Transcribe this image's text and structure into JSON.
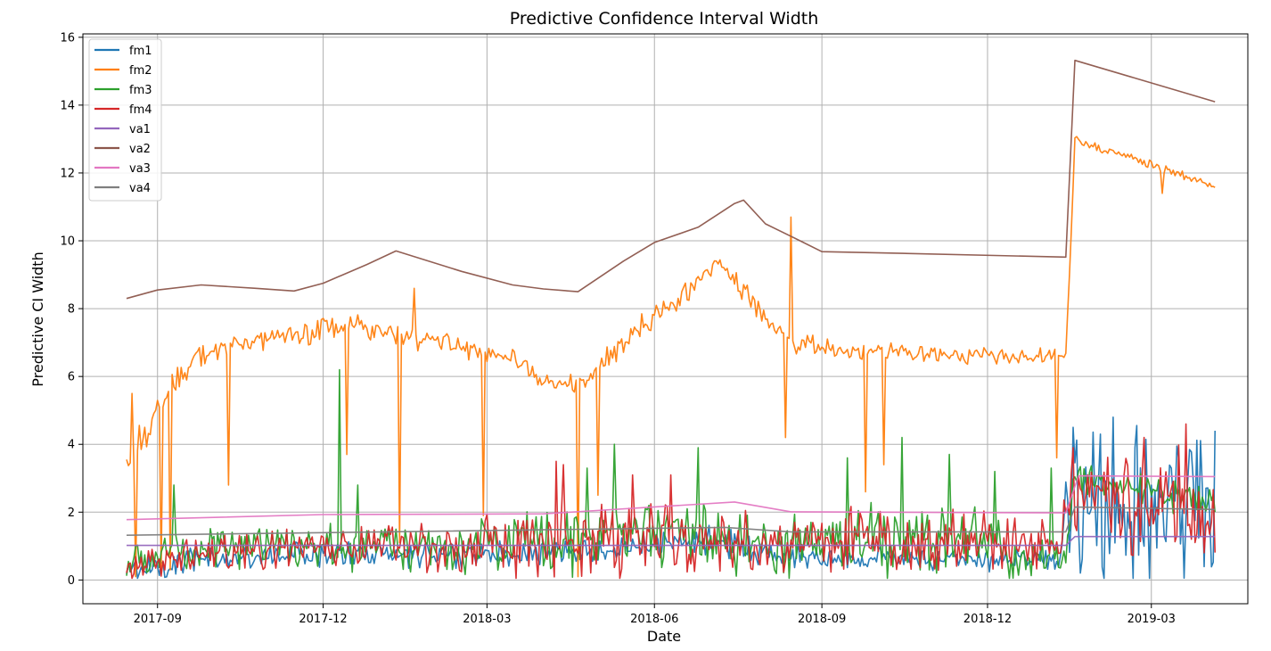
{
  "chart_data": {
    "type": "line",
    "title": "Predictive Confidence Interval Width",
    "xlabel": "Date",
    "ylabel": "Predictive CI Width",
    "ylim": [
      -0.7,
      16.1
    ],
    "xlim": [
      "2017-07-22",
      "2019-04-23"
    ],
    "grid": true,
    "legend_position": "top-left",
    "x_ticks": [
      "2017-09",
      "2017-12",
      "2018-03",
      "2018-06",
      "2018-09",
      "2018-12",
      "2019-03"
    ],
    "y_ticks": [
      0,
      2,
      4,
      6,
      8,
      10,
      12,
      14,
      16
    ],
    "series": [
      {
        "name": "fm1",
        "color": "#1f77b4",
        "noisy": true,
        "points": [
          [
            "2017-08-15",
            0.3
          ],
          [
            "2017-09-15",
            0.55
          ],
          [
            "2017-12-01",
            0.8
          ],
          [
            "2018-02-01",
            0.75
          ],
          [
            "2018-04-01",
            0.8
          ],
          [
            "2018-06-01",
            1.0
          ],
          [
            "2018-07-01",
            1.2
          ],
          [
            "2018-08-01",
            0.75
          ],
          [
            "2018-09-15",
            0.65
          ],
          [
            "2018-12-01",
            0.6
          ],
          [
            "2019-01-10",
            0.6
          ],
          [
            "2019-01-15",
            2.2
          ],
          [
            "2019-02-15",
            2.4
          ],
          [
            "2019-04-05",
            2.4
          ]
        ],
        "noise": [
          0.35,
          0.35,
          0.4,
          0.35,
          0.35,
          0.35,
          0.4,
          0.35,
          0.3,
          0.3,
          0.3,
          2.0,
          2.2,
          2.1
        ],
        "spikes": [
          [
            "2019-01-17",
            4.5
          ],
          [
            "2019-02-01",
            4.3
          ],
          [
            "2019-02-08",
            4.8
          ],
          [
            "2019-03-12",
            3.3
          ],
          [
            "2019-04-05",
            4.4
          ]
        ]
      },
      {
        "name": "fm2",
        "color": "#ff7f0e",
        "noisy": true,
        "points": [
          [
            "2017-08-15",
            3.5
          ],
          [
            "2017-09-01",
            5.0
          ],
          [
            "2017-09-20",
            6.5
          ],
          [
            "2017-10-15",
            7.0
          ],
          [
            "2017-12-20",
            7.5
          ],
          [
            "2018-02-01",
            7.0
          ],
          [
            "2018-03-20",
            6.5
          ],
          [
            "2018-04-01",
            5.8
          ],
          [
            "2018-04-25",
            5.9
          ],
          [
            "2018-05-15",
            7.0
          ],
          [
            "2018-06-20",
            8.6
          ],
          [
            "2018-07-05",
            9.4
          ],
          [
            "2018-07-25",
            8.2
          ],
          [
            "2018-08-15",
            6.9
          ],
          [
            "2018-12-01",
            6.6
          ],
          [
            "2019-01-13",
            6.6
          ],
          [
            "2019-01-18",
            13.0
          ],
          [
            "2019-04-05",
            11.6
          ]
        ],
        "noise": [
          0.6,
          0.5,
          0.3,
          0.25,
          0.35,
          0.3,
          0.25,
          0.2,
          0.3,
          0.4,
          0.35,
          0.3,
          0.3,
          0.3,
          0.25,
          0.2,
          0.15,
          0.1
        ],
        "spikes": [
          [
            "2017-08-18",
            5.5
          ],
          [
            "2017-08-20",
            0.1
          ],
          [
            "2017-08-25",
            4.5
          ],
          [
            "2017-09-03",
            0.2
          ],
          [
            "2017-09-08",
            0.3
          ],
          [
            "2017-10-10",
            2.8
          ],
          [
            "2017-12-14",
            3.7
          ],
          [
            "2018-01-12",
            1.1
          ],
          [
            "2018-01-20",
            8.6
          ],
          [
            "2018-02-27",
            1.9
          ],
          [
            "2018-04-20",
            0.1
          ],
          [
            "2018-05-01",
            2.5
          ],
          [
            "2018-08-12",
            4.2
          ],
          [
            "2018-08-15",
            10.7
          ],
          [
            "2018-09-25",
            2.6
          ],
          [
            "2018-10-05",
            3.4
          ],
          [
            "2019-01-08",
            3.6
          ],
          [
            "2019-03-07",
            11.4
          ]
        ]
      },
      {
        "name": "fm3",
        "color": "#2ca02c",
        "noisy": true,
        "points": [
          [
            "2017-08-15",
            0.5
          ],
          [
            "2017-10-01",
            0.9
          ],
          [
            "2017-12-01",
            1.0
          ],
          [
            "2018-02-01",
            0.9
          ],
          [
            "2018-04-01",
            1.2
          ],
          [
            "2018-06-01",
            1.5
          ],
          [
            "2018-08-01",
            1.0
          ],
          [
            "2018-10-01",
            1.2
          ],
          [
            "2018-12-01",
            1.1
          ],
          [
            "2019-01-12",
            0.5
          ],
          [
            "2019-01-18",
            3.0
          ],
          [
            "2019-04-05",
            2.3
          ]
        ],
        "noise": [
          0.5,
          0.6,
          0.6,
          0.7,
          0.9,
          1.0,
          0.8,
          1.0,
          0.9,
          0.4,
          0.5,
          0.5
        ],
        "spikes": [
          [
            "2017-09-10",
            2.8
          ],
          [
            "2017-12-10",
            6.2
          ],
          [
            "2017-12-20",
            2.8
          ],
          [
            "2018-04-25",
            3.3
          ],
          [
            "2018-05-10",
            4.0
          ],
          [
            "2018-06-25",
            3.9
          ],
          [
            "2018-09-15",
            3.6
          ],
          [
            "2018-10-15",
            4.2
          ],
          [
            "2018-11-10",
            3.7
          ],
          [
            "2018-12-05",
            3.2
          ],
          [
            "2019-01-05",
            3.3
          ]
        ]
      },
      {
        "name": "fm4",
        "color": "#d62728",
        "noisy": true,
        "points": [
          [
            "2017-08-15",
            0.3
          ],
          [
            "2017-10-01",
            0.8
          ],
          [
            "2017-12-01",
            1.0
          ],
          [
            "2018-02-01",
            0.9
          ],
          [
            "2018-04-01",
            1.1
          ],
          [
            "2018-06-01",
            1.2
          ],
          [
            "2018-08-01",
            1.0
          ],
          [
            "2018-10-01",
            1.1
          ],
          [
            "2018-12-01",
            1.1
          ],
          [
            "2019-01-10",
            1.0
          ],
          [
            "2019-01-17",
            2.5
          ],
          [
            "2019-04-05",
            2.2
          ]
        ],
        "noise": [
          0.3,
          0.6,
          0.6,
          0.7,
          1.0,
          0.9,
          0.8,
          0.9,
          0.9,
          0.6,
          1.4,
          1.5
        ],
        "spikes": [
          [
            "2018-04-08",
            3.5
          ],
          [
            "2018-04-12",
            3.4
          ],
          [
            "2018-05-20",
            3.1
          ],
          [
            "2018-06-10",
            3.1
          ],
          [
            "2019-01-17",
            3.9
          ],
          [
            "2019-02-25",
            4.2
          ],
          [
            "2019-03-20",
            4.6
          ]
        ]
      },
      {
        "name": "va1",
        "color": "#9467bd",
        "noisy": false,
        "points": [
          [
            "2017-08-15",
            1.02
          ],
          [
            "2019-01-13",
            1.02
          ],
          [
            "2019-01-18",
            1.28
          ],
          [
            "2019-04-05",
            1.28
          ]
        ]
      },
      {
        "name": "va2",
        "color": "#8c564b",
        "noisy": false,
        "points": [
          [
            "2017-08-15",
            8.3
          ],
          [
            "2017-09-01",
            8.55
          ],
          [
            "2017-09-25",
            8.7
          ],
          [
            "2017-10-25",
            8.6
          ],
          [
            "2017-11-15",
            8.52
          ],
          [
            "2017-12-01",
            8.75
          ],
          [
            "2017-12-25",
            9.3
          ],
          [
            "2018-01-10",
            9.7
          ],
          [
            "2018-02-15",
            9.1
          ],
          [
            "2018-03-15",
            8.7
          ],
          [
            "2018-04-01",
            8.58
          ],
          [
            "2018-04-20",
            8.5
          ],
          [
            "2018-05-15",
            9.4
          ],
          [
            "2018-06-01",
            9.95
          ],
          [
            "2018-06-25",
            10.4
          ],
          [
            "2018-07-15",
            11.1
          ],
          [
            "2018-07-20",
            11.2
          ],
          [
            "2018-08-01",
            10.5
          ],
          [
            "2018-08-20",
            10.0
          ],
          [
            "2018-09-01",
            9.68
          ],
          [
            "2018-10-15",
            9.63
          ],
          [
            "2019-01-13",
            9.52
          ],
          [
            "2019-01-18",
            15.32
          ],
          [
            "2019-04-05",
            14.1
          ]
        ]
      },
      {
        "name": "va3",
        "color": "#e377c2",
        "noisy": false,
        "points": [
          [
            "2017-08-15",
            1.78
          ],
          [
            "2017-12-01",
            1.93
          ],
          [
            "2018-04-01",
            1.95
          ],
          [
            "2018-07-15",
            2.3
          ],
          [
            "2018-08-15",
            2.01
          ],
          [
            "2019-01-13",
            1.98
          ],
          [
            "2019-01-20",
            3.07
          ],
          [
            "2019-04-05",
            3.05
          ]
        ]
      },
      {
        "name": "va4",
        "color": "#7f7f7f",
        "noisy": false,
        "points": [
          [
            "2017-08-15",
            1.32
          ],
          [
            "2018-07-10",
            1.55
          ],
          [
            "2018-08-15",
            1.42
          ],
          [
            "2019-01-13",
            1.42
          ],
          [
            "2019-01-18",
            2.15
          ],
          [
            "2019-04-05",
            2.08
          ]
        ]
      }
    ]
  }
}
